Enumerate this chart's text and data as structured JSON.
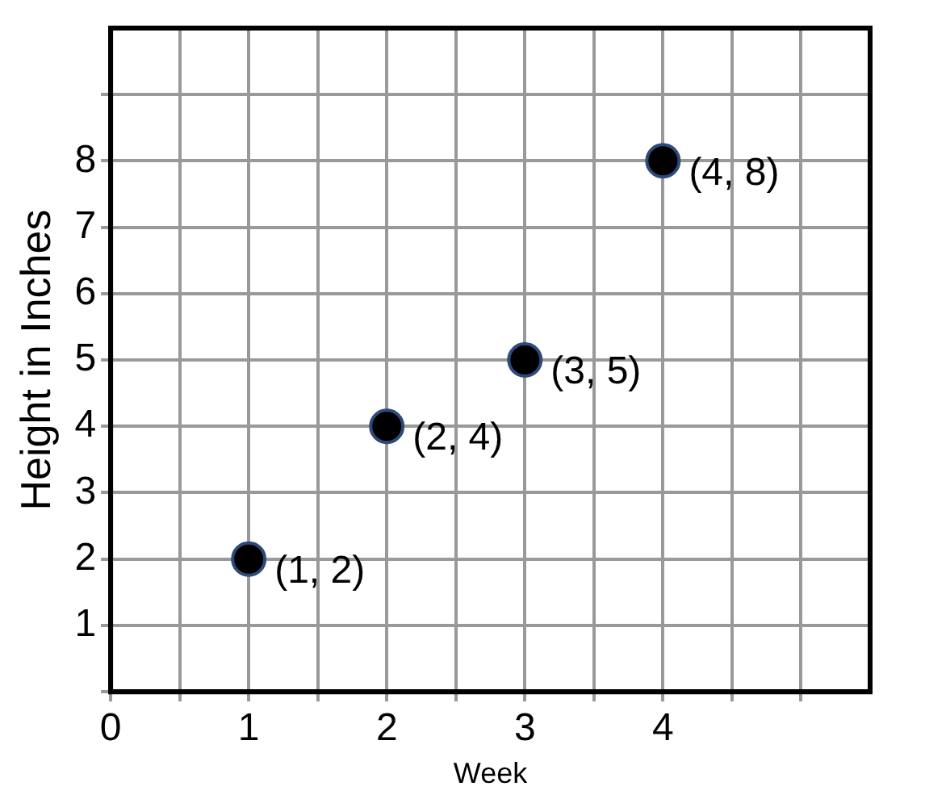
{
  "chart_data": {
    "type": "scatter",
    "xlabel": "Week",
    "ylabel": "Height in Inches",
    "x": [
      1,
      2,
      3,
      4
    ],
    "series": [
      {
        "color": "#000000",
        "values": [
          2,
          4,
          5,
          8
        ],
        "value_labels": [
          "(1, 2)",
          "(2, 4)",
          "(3, 5)",
          "(4, 8)"
        ]
      }
    ],
    "xlim": [
      0,
      5.5
    ],
    "xticks": [
      0,
      {
        "value": 0.5,
        "label": null
      },
      1,
      {
        "value": 1.5,
        "label": null
      },
      2,
      {
        "value": 2.5,
        "label": null
      },
      3,
      {
        "value": 3.5,
        "label": null
      },
      4,
      {
        "value": 4.5,
        "label": null
      },
      {
        "value": 5,
        "label": null
      }
    ],
    "ylim": [
      0,
      10
    ],
    "yticks": [
      {
        "value": 0,
        "label": null
      },
      1,
      2,
      3,
      4,
      5,
      6,
      7,
      8,
      {
        "value": 9,
        "label": null
      }
    ],
    "grid": true,
    "marker": "circle",
    "legend": false
  }
}
